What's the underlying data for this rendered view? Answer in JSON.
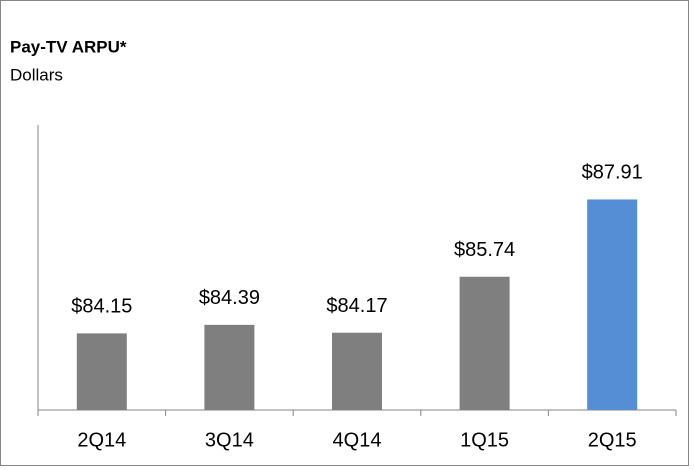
{
  "chart_data": {
    "type": "bar",
    "title": "Pay-TV ARPU*",
    "subtitle": "Dollars",
    "categories": [
      "2Q14",
      "3Q14",
      "4Q14",
      "1Q15",
      "2Q15"
    ],
    "values": [
      84.15,
      84.39,
      84.17,
      85.74,
      87.91
    ],
    "value_labels": [
      "$84.15",
      "$84.39",
      "$84.17",
      "$85.74",
      "$87.91"
    ],
    "colors": [
      "#7f7f7f",
      "#7f7f7f",
      "#7f7f7f",
      "#7f7f7f",
      "#558ed5"
    ],
    "ylim": [
      82,
      90
    ]
  }
}
